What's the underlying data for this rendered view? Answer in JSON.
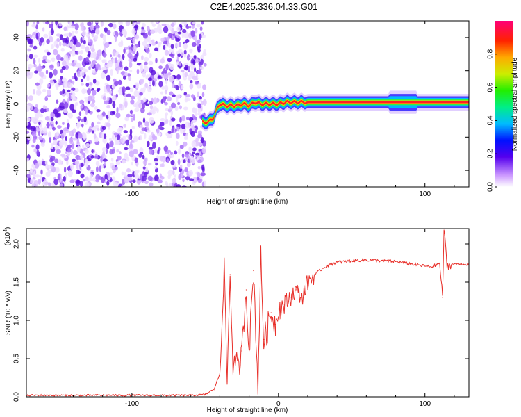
{
  "title": "C2E4.2025.336.04.33.G01",
  "chart_data": [
    {
      "type": "heatmap",
      "name": "spectrogram",
      "xlabel": "Height of straight line (km)",
      "ylabel": "Frequency (Hz)",
      "xlim": [
        -172,
        130
      ],
      "ylim": [
        -50,
        50
      ],
      "x_ticks": [
        -100,
        0,
        100
      ],
      "x_tick_labels": [
        "-100",
        "0",
        "100"
      ],
      "y_ticks": [
        -40,
        -20,
        0,
        20,
        40
      ],
      "y_tick_labels": [
        "-40",
        "-20",
        "0",
        "20",
        "40"
      ],
      "noise_region_x": [
        -172,
        -50
      ],
      "signal_track": {
        "x": [
          -52,
          -48,
          -44,
          -42,
          -40,
          -36,
          -32,
          -28,
          -24,
          -20,
          -16,
          -12,
          -8,
          -4,
          0,
          5,
          10,
          20,
          40,
          60,
          80,
          90,
          100,
          110,
          120,
          130
        ],
        "freq": [
          -11,
          -11,
          -8,
          -3,
          0,
          -1,
          -1,
          -1,
          0,
          -1,
          1,
          0,
          0,
          0,
          0,
          1,
          1,
          1,
          1,
          1,
          1,
          1,
          1,
          1,
          1,
          1
        ]
      },
      "colorbar": {
        "label": "Normalized spectral amplitude",
        "range": [
          0.0,
          1.0
        ],
        "ticks": [
          0.0,
          0.2,
          0.4,
          0.6,
          0.8
        ],
        "tick_labels": [
          "0.0",
          "0.2",
          "0.4",
          "0.6",
          "0.8"
        ]
      }
    },
    {
      "type": "line",
      "name": "snr",
      "xlabel": "Height of straight line (km)",
      "ylabel": "SNR (10 * v/v)",
      "y_multiplier": "(x10",
      "y_multiplier_exp": "4",
      "xlim": [
        -172,
        130
      ],
      "ylim": [
        0.0,
        2.2
      ],
      "x_ticks": [
        -100,
        0,
        100
      ],
      "x_tick_labels": [
        "-100",
        "0",
        "100"
      ],
      "y_ticks": [
        0.0,
        0.5,
        1.0,
        1.5,
        2.0
      ],
      "y_tick_labels": [
        "0.0",
        "0.5",
        "1.0",
        "1.5",
        "2.0"
      ],
      "series": [
        {
          "name": "SNR",
          "color": "#e8302a",
          "x": [
            -172,
            -60,
            -50,
            -44,
            -40,
            -37,
            -35,
            -33,
            -31,
            -29,
            -27,
            -25,
            -22,
            -20,
            -17,
            -14,
            -12,
            -10,
            -8,
            -5,
            -2,
            0,
            4,
            8,
            12,
            16,
            20,
            25,
            30,
            35,
            40,
            50,
            60,
            70,
            80,
            90,
            100,
            105,
            110,
            112,
            113,
            115,
            120,
            130
          ],
          "y": [
            0.02,
            0.02,
            0.03,
            0.1,
            0.3,
            1.7,
            0.2,
            1.6,
            0.4,
            0.5,
            0.35,
            0.6,
            1.4,
            0.6,
            1.65,
            0.15,
            1.8,
            0.75,
            0.85,
            1.1,
            0.95,
            1.15,
            1.2,
            1.3,
            1.4,
            1.3,
            1.5,
            1.6,
            1.68,
            1.73,
            1.76,
            1.78,
            1.79,
            1.78,
            1.77,
            1.74,
            1.71,
            1.7,
            1.75,
            1.3,
            2.2,
            1.72,
            1.74,
            1.73
          ]
        }
      ]
    }
  ]
}
